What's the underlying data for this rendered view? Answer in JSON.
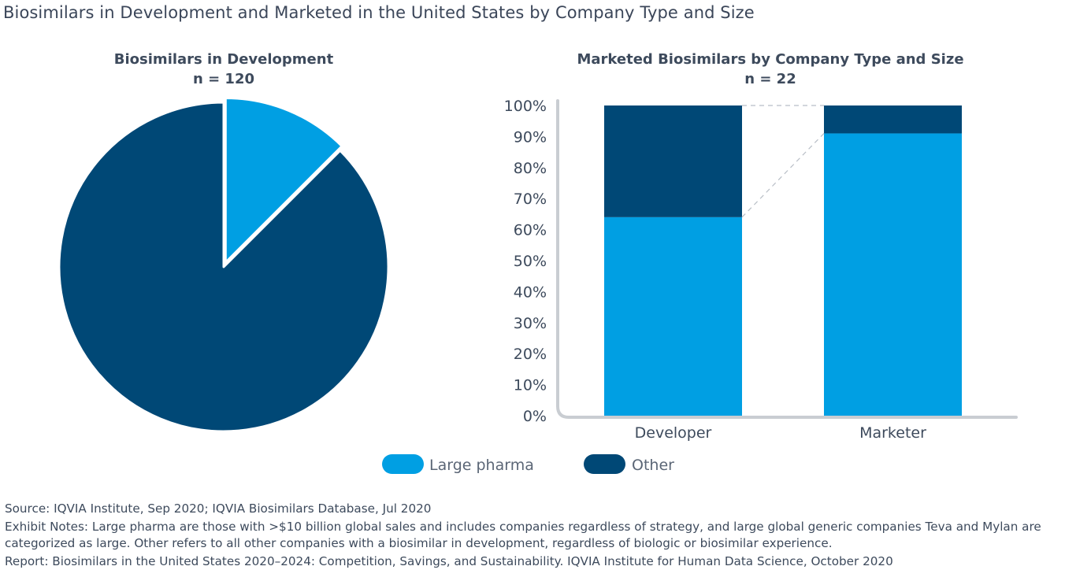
{
  "title": "Biosimilars in Development and Marketed in the United States by Company Type and Size",
  "colors": {
    "large_pharma": "#009fe3",
    "other": "#004876",
    "axis": "#c9cdd2",
    "text": "#3d4a5c"
  },
  "chart_data": [
    {
      "type": "pie",
      "title": "Biosimilars in Development",
      "subtitle": "n = 120",
      "labels": [
        "Large pharma",
        "Other"
      ],
      "values": [
        12.5,
        87.5
      ],
      "units": "percent"
    },
    {
      "type": "bar",
      "stacked": true,
      "title": "Marketed Biosimilars by Company Type and Size",
      "subtitle": "n = 22",
      "categories": [
        "Developer",
        "Marketer"
      ],
      "series": [
        {
          "name": "Large pharma",
          "values": [
            64,
            91
          ]
        },
        {
          "name": "Other",
          "values": [
            36,
            9
          ]
        }
      ],
      "yticks": [
        "0%",
        "10%",
        "20%",
        "30%",
        "40%",
        "50%",
        "60%",
        "70%",
        "80%",
        "90%",
        "100%"
      ],
      "ylim": [
        0,
        100
      ],
      "connector_lines": true
    }
  ],
  "legend": [
    {
      "label": "Large pharma",
      "color": "#009fe3"
    },
    {
      "label": "Other",
      "color": "#004876"
    }
  ],
  "notes": {
    "source": "Source: IQVIA Institute, Sep 2020; IQVIA Biosimilars Database, Jul 2020",
    "exhibit": "Exhibit Notes: Large pharma are those with >$10 billion global sales and includes companies regardless of strategy, and large global generic companies Teva and Mylan are categorized as large. Other refers to all other companies with a biosimilar in development, regardless of biologic or biosimilar experience.",
    "report": "Report: Biosimilars in the United States 2020–2024: Competition, Savings, and Sustainability. IQVIA Institute for Human Data Science, October 2020"
  }
}
